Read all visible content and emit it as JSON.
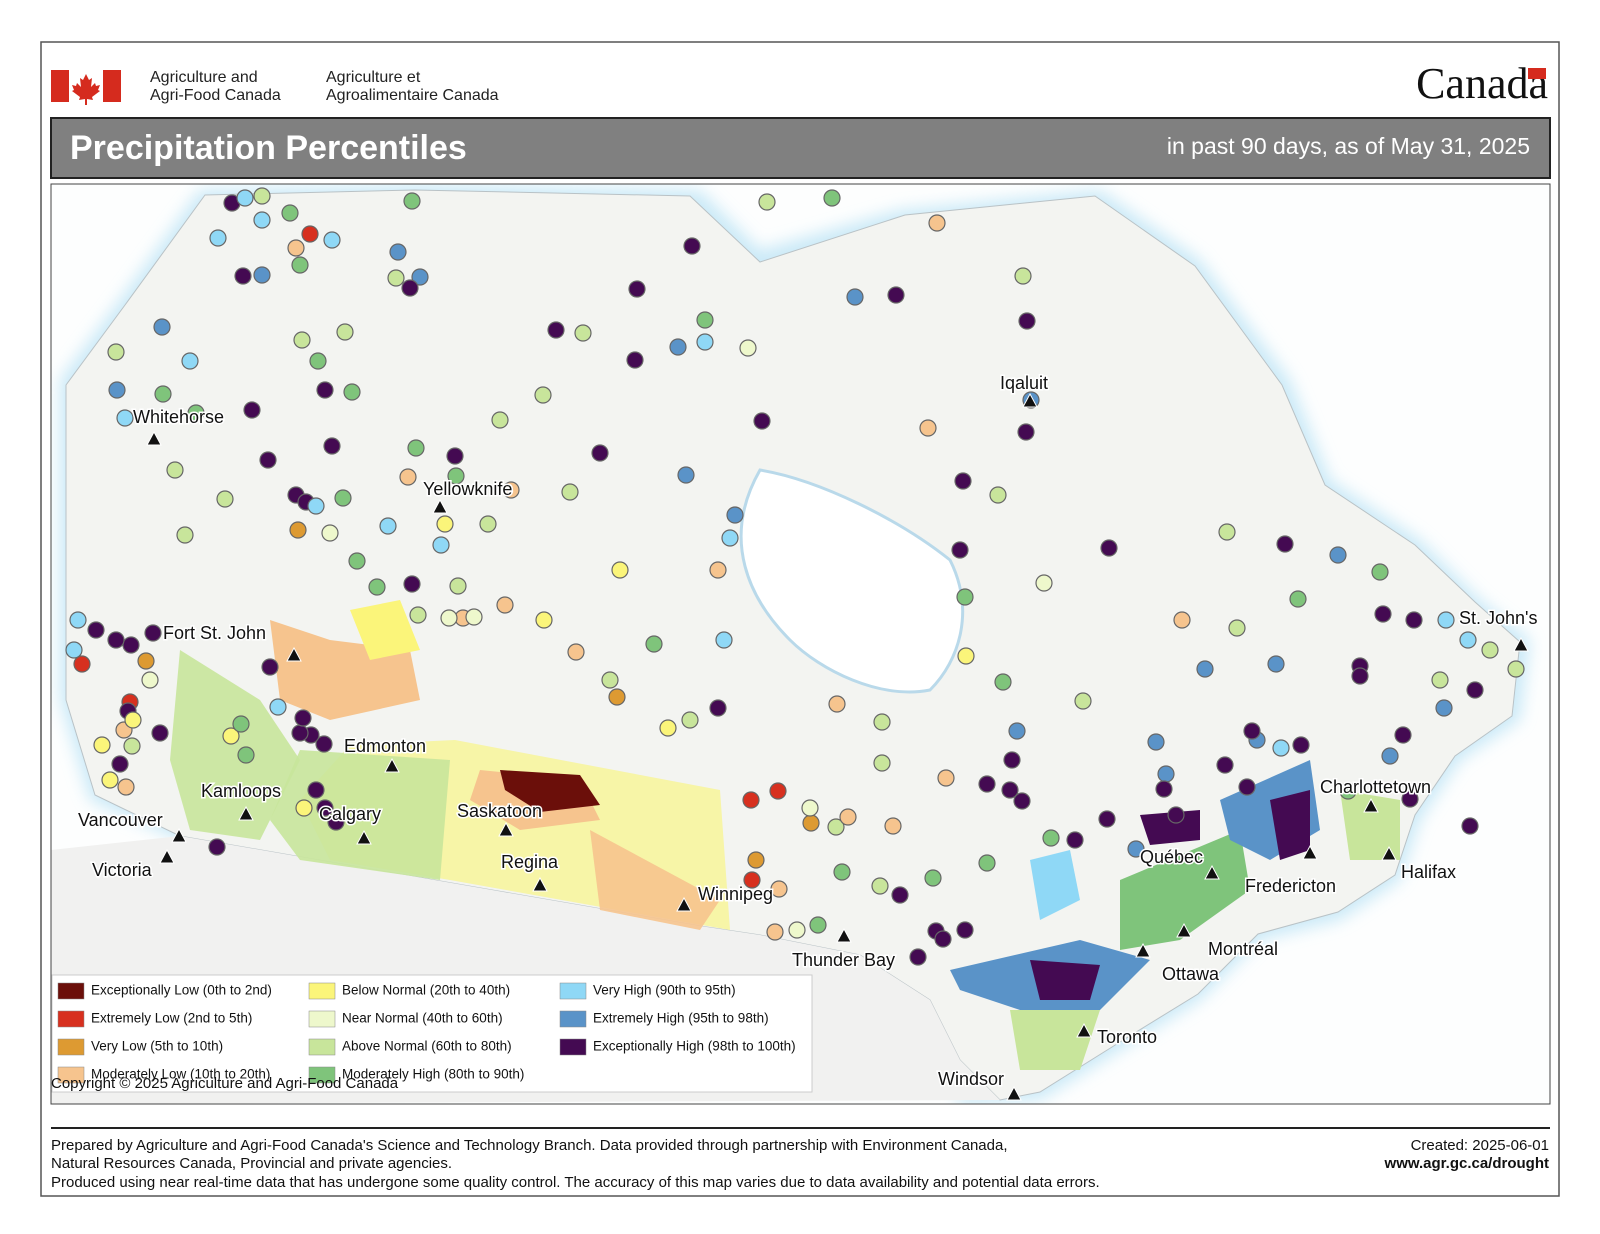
{
  "header": {
    "org_en": [
      "Agriculture and",
      "Agri-Food Canada"
    ],
    "org_fr": [
      "Agriculture et",
      "Agroalimentaire Canada"
    ],
    "wordmark": "Canada"
  },
  "title": "Precipitation Percentiles",
  "subtitle": "in past 90 days, as of May 31, 2025",
  "cities": [
    "Whitehorse",
    "Yellowknife",
    "Iqaluit",
    "Fort St. John",
    "Edmonton",
    "Kamloops",
    "Calgary",
    "Vancouver",
    "Victoria",
    "Saskatoon",
    "Regina",
    "Winnipeg",
    "Thunder Bay",
    "Windsor",
    "Toronto",
    "Ottawa",
    "Montréal",
    "Québec",
    "Fredericton",
    "Charlottetown",
    "Halifax",
    "St. John's"
  ],
  "legend": [
    {
      "label": "Exceptionally Low (0th to 2nd)",
      "color": "#6b0f0a"
    },
    {
      "label": "Extremely Low (2nd to 5th)",
      "color": "#d7301f"
    },
    {
      "label": "Very Low (5th to 10th)",
      "color": "#dd9a32"
    },
    {
      "label": "Moderately Low (10th to 20th)",
      "color": "#f6c48e"
    },
    {
      "label": "Below Normal (20th to 40th)",
      "color": "#fbf57a"
    },
    {
      "label": "Near Normal (40th to 60th)",
      "color": "#eef8cc"
    },
    {
      "label": "Above Normal (60th to 80th)",
      "color": "#c8e59b"
    },
    {
      "label": "Moderately High (80th to 90th)",
      "color": "#7fc47b"
    },
    {
      "label": "Very High (90th to 95th)",
      "color": "#8fd8f6"
    },
    {
      "label": "Extremely High (95th to 98th)",
      "color": "#5a93c8"
    },
    {
      "label": "Exceptionally High (98th to 100th)",
      "color": "#440a52"
    }
  ],
  "copyright": "Copyright © 2025 Agriculture and Agri-Food Canada",
  "footer": {
    "notes": [
      "Prepared by Agriculture and Agri-Food Canada's Science and Technology Branch. Data provided through partnership with Environment Canada,",
      "Natural Resources Canada, Provincial and private agencies.",
      "Produced using near real-time data that has undergone some quality control. The accuracy of this map varies due to data availability and potential data errors."
    ],
    "created": "Created: 2025-06-01",
    "url": "www.agr.gc.ca/drought"
  }
}
